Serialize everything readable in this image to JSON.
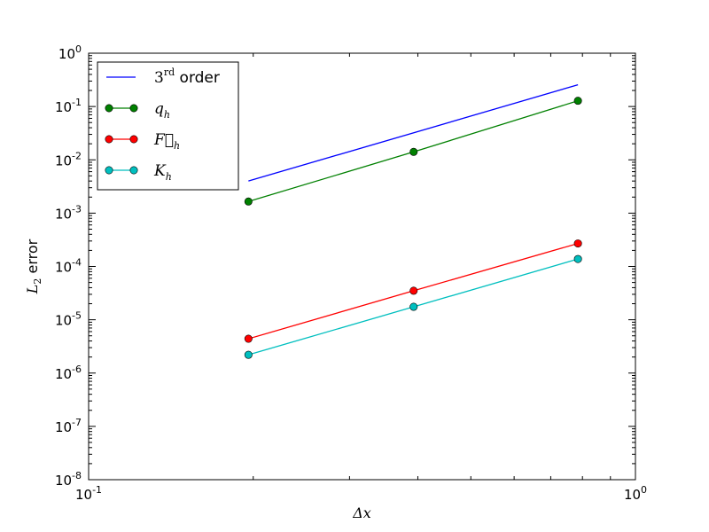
{
  "chart_data": {
    "type": "line",
    "x_scale": "log",
    "y_scale": "log",
    "xlim": [
      0.1,
      1.0
    ],
    "ylim": [
      1e-08,
      1.0
    ],
    "xlabel": "Δx",
    "ylabel": {
      "base": "L",
      "sub": "2",
      "rest": " error"
    },
    "x_ticks": [
      {
        "value": 0.1,
        "base": "10",
        "exp": "-1"
      },
      {
        "value": 1.0,
        "base": "10",
        "exp": "0"
      }
    ],
    "y_ticks": [
      {
        "value": 1e-08,
        "base": "10",
        "exp": "-8"
      },
      {
        "value": 1e-07,
        "base": "10",
        "exp": "-7"
      },
      {
        "value": 1e-06,
        "base": "10",
        "exp": "-6"
      },
      {
        "value": 1e-05,
        "base": "10",
        "exp": "-5"
      },
      {
        "value": 0.0001,
        "base": "10",
        "exp": "-4"
      },
      {
        "value": 0.001,
        "base": "10",
        "exp": "-3"
      },
      {
        "value": 0.01,
        "base": "10",
        "exp": "-2"
      },
      {
        "value": 0.1,
        "base": "10",
        "exp": "-1"
      },
      {
        "value": 1.0,
        "base": "10",
        "exp": "0"
      }
    ],
    "grid": false,
    "legend_position": "top-left",
    "series": [
      {
        "legend": {
          "main": "3",
          "sup": "rd",
          "rest": " order"
        },
        "color": "#0000ff",
        "markers": false,
        "x": [
          0.196,
          0.785
        ],
        "y": [
          0.004,
          0.256
        ]
      },
      {
        "legend": {
          "main": "q",
          "sub": "h"
        },
        "color": "#008000",
        "markers": true,
        "x": [
          0.196,
          0.393,
          0.785
        ],
        "y": [
          0.00165,
          0.0141,
          0.128
        ]
      },
      {
        "legend": {
          "main": "F⃗",
          "sub": "h"
        },
        "color": "#ff0000",
        "markers": true,
        "x": [
          0.196,
          0.393,
          0.785
        ],
        "y": [
          4.4e-06,
          3.5e-05,
          0.00027
        ]
      },
      {
        "legend": {
          "main": "K",
          "sub": "h"
        },
        "color": "#00bfbf",
        "markers": true,
        "x": [
          0.196,
          0.393,
          0.785
        ],
        "y": [
          2.2e-06,
          1.75e-05,
          0.000138
        ]
      }
    ]
  }
}
